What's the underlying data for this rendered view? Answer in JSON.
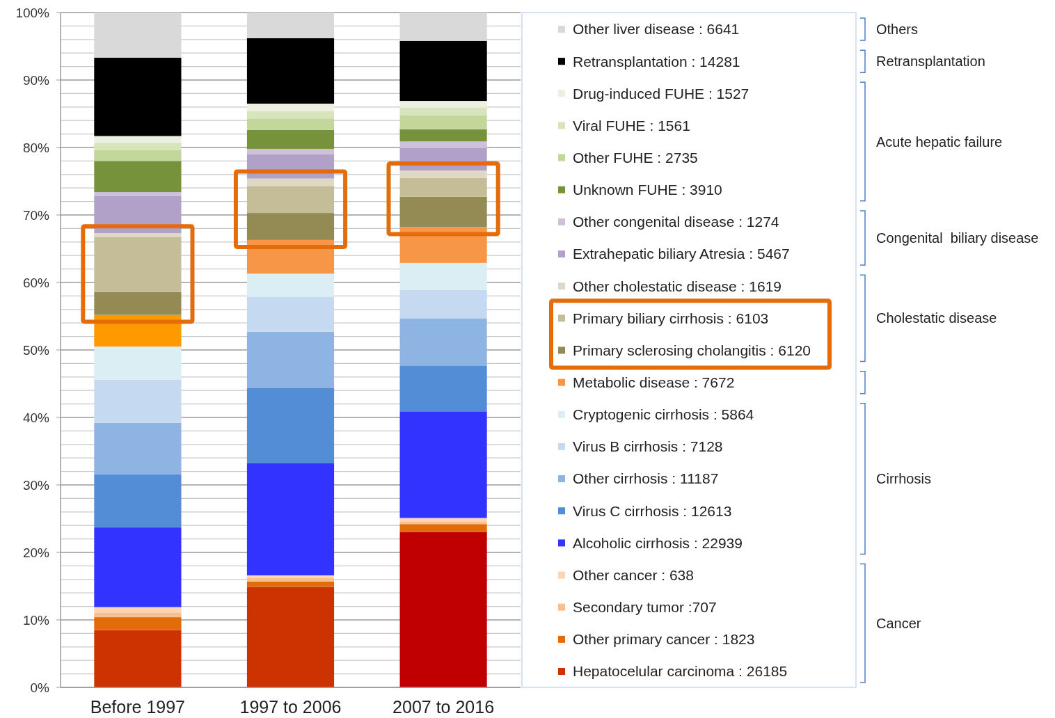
{
  "chart_data": {
    "type": "bar",
    "stacked": true,
    "categories": [
      "Before 1997",
      "1997 to 2006",
      "2007 to 2016"
    ],
    "ylim": [
      0,
      100
    ],
    "yticks": [
      {
        "value": 0,
        "label": "0%"
      },
      {
        "value": 2,
        "label": null
      },
      {
        "value": 4,
        "label": null
      },
      {
        "value": 6,
        "label": null
      },
      {
        "value": 8,
        "label": null
      },
      {
        "value": 10,
        "label": "10%"
      },
      {
        "value": 12,
        "label": null
      },
      {
        "value": 14,
        "label": null
      },
      {
        "value": 16,
        "label": null
      },
      {
        "value": 18,
        "label": null
      },
      {
        "value": 20,
        "label": "20%"
      },
      {
        "value": 22,
        "label": null
      },
      {
        "value": 24,
        "label": null
      },
      {
        "value": 26,
        "label": null
      },
      {
        "value": 28,
        "label": null
      },
      {
        "value": 30,
        "label": "30%"
      },
      {
        "value": 32,
        "label": null
      },
      {
        "value": 34,
        "label": null
      },
      {
        "value": 36,
        "label": null
      },
      {
        "value": 38,
        "label": null
      },
      {
        "value": 40,
        "label": "40%"
      },
      {
        "value": 42,
        "label": null
      },
      {
        "value": 44,
        "label": null
      },
      {
        "value": 46,
        "label": null
      },
      {
        "value": 48,
        "label": null
      },
      {
        "value": 50,
        "label": "50%"
      },
      {
        "value": 52,
        "label": null
      },
      {
        "value": 54,
        "label": null
      },
      {
        "value": 56,
        "label": null
      },
      {
        "value": 58,
        "label": null
      },
      {
        "value": 60,
        "label": "60%"
      },
      {
        "value": 62,
        "label": null
      },
      {
        "value": 64,
        "label": null
      },
      {
        "value": 66,
        "label": null
      },
      {
        "value": 68,
        "label": null
      },
      {
        "value": 70,
        "label": "70%"
      },
      {
        "value": 72,
        "label": null
      },
      {
        "value": 74,
        "label": null
      },
      {
        "value": 76,
        "label": null
      },
      {
        "value": 78,
        "label": null
      },
      {
        "value": 80,
        "label": "80%"
      },
      {
        "value": 82,
        "label": null
      },
      {
        "value": 84,
        "label": null
      },
      {
        "value": 86,
        "label": null
      },
      {
        "value": 88,
        "label": null
      },
      {
        "value": 90,
        "label": "90%"
      },
      {
        "value": 92,
        "label": null
      },
      {
        "value": 94,
        "label": null
      },
      {
        "value": 96,
        "label": null
      },
      {
        "value": 98,
        "label": null
      },
      {
        "value": 100,
        "label": "100%"
      }
    ],
    "grid": "y",
    "legend": "right",
    "series": [
      {
        "name": "Hepatocelular carcinoma : 26185",
        "color": "#cc3300",
        "colors": [
          "#cc3300",
          "#cc3300",
          "#c00000"
        ],
        "values": [
          8.5,
          14.9,
          23.0
        ]
      },
      {
        "name": "Other primary cancer : 1823",
        "color": "#e26b0a",
        "values": [
          1.9,
          0.8,
          1.2
        ]
      },
      {
        "name": "Secondary tumor :707",
        "color": "#fabf8f",
        "values": [
          0.7,
          0.5,
          0.4
        ]
      },
      {
        "name": "Other cancer : 638",
        "color": "#fcd5b4",
        "values": [
          0.8,
          0.4,
          0.5
        ]
      },
      {
        "name": "Alcoholic cirrhosis : 22939",
        "color": "#3333ff",
        "values": [
          11.8,
          16.6,
          15.8
        ]
      },
      {
        "name": "Virus C cirrhosis : 12613",
        "color": "#538dd5",
        "values": [
          7.9,
          11.2,
          6.8
        ]
      },
      {
        "name": "Other cirrhosis : 11187",
        "color": "#8db4e2",
        "values": [
          7.6,
          8.3,
          7.0
        ]
      },
      {
        "name": "Virus B cirrhosis : 7128",
        "color": "#c5d9f1",
        "values": [
          6.4,
          5.2,
          4.2
        ]
      },
      {
        "name": "Cryptogenic cirrhosis : 5864",
        "color": "#daeef3",
        "values": [
          4.9,
          3.4,
          4.0
        ]
      },
      {
        "name": "Metabolic disease : 7672",
        "color": "#f79646",
        "colors": [
          "#ff9900",
          "#f79646",
          "#f79646"
        ],
        "values": [
          4.7,
          5.0,
          5.3
        ]
      },
      {
        "name": "Primary sclerosing cholangitis : 6120",
        "color": "#948a54",
        "values": [
          3.4,
          4.0,
          4.5
        ]
      },
      {
        "name": "Primary biliary cirrhosis : 6103",
        "color": "#c4bd97",
        "values": [
          8.1,
          4.0,
          2.8
        ]
      },
      {
        "name": "Other cholestatic disease : 1619",
        "color": "#ddd9c4",
        "values": [
          0.6,
          1.1,
          1.1
        ]
      },
      {
        "name": "Extrahepatic biliary Atresia : 5467",
        "color": "#b1a0c7",
        "values": [
          5.5,
          3.6,
          3.3
        ]
      },
      {
        "name": "Other congenital disease : 1274",
        "color": "#ccc0da",
        "values": [
          0.6,
          0.8,
          1.0
        ]
      },
      {
        "name": "Unknown FUHE : 3910",
        "color": "#76933c",
        "values": [
          4.6,
          2.8,
          1.8
        ]
      },
      {
        "name": "Other FUHE : 2735",
        "color": "#c4d79b",
        "values": [
          1.6,
          1.7,
          2.1
        ]
      },
      {
        "name": "Viral FUHE : 1561",
        "color": "#d8e4bc",
        "values": [
          1.1,
          1.1,
          1.1
        ]
      },
      {
        "name": "Drug-induced FUHE : 1527",
        "color": "#ebf1de",
        "values": [
          1.0,
          1.1,
          1.0
        ]
      },
      {
        "name": "Retransplantation : 14281",
        "color": "#000000",
        "values": [
          11.6,
          9.7,
          8.9
        ]
      },
      {
        "name": "Other liver disease : 6641",
        "color": "#d9d9d9",
        "values": [
          6.7,
          3.8,
          4.2
        ]
      }
    ],
    "annotations": [
      "Others",
      "Retransplantation",
      "Acute hepatic failure",
      "Congenital  biliary disease",
      "Cholestatic disease",
      "Cirrhosis",
      "Cancer"
    ]
  }
}
